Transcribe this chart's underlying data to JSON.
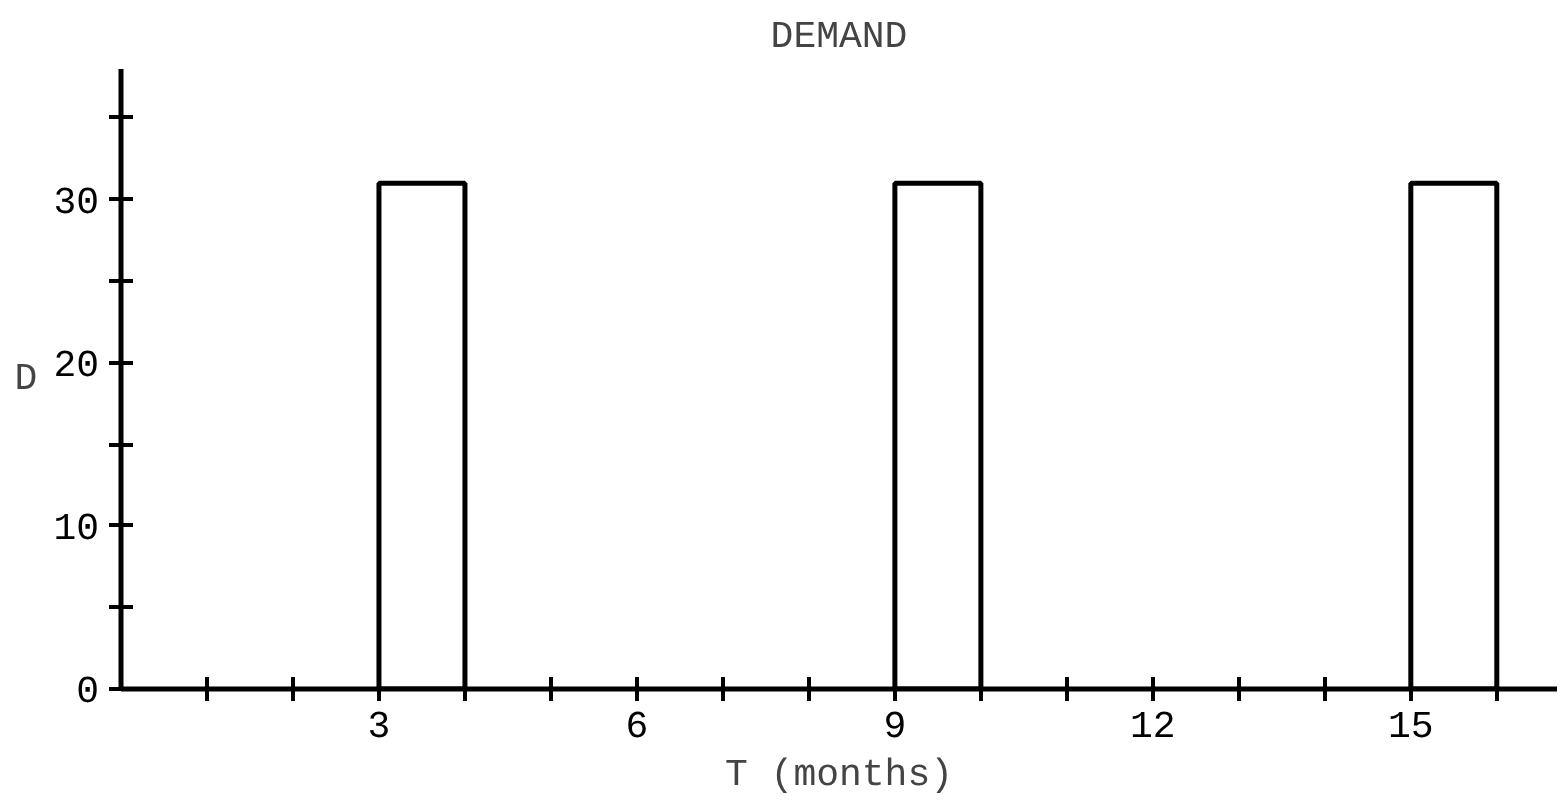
{
  "chart_data": {
    "type": "bar",
    "title": "DEMAND",
    "xlabel": "T (months)",
    "ylabel": "D",
    "x": [
      3.5,
      9.5,
      15.5
    ],
    "values": [
      31,
      31,
      31
    ],
    "color": "#000000",
    "xlim": [
      0,
      16.7
    ],
    "ylim": [
      0,
      38
    ],
    "xticks": [
      {
        "value": 1,
        "label": null
      },
      {
        "value": 2,
        "label": null
      },
      3,
      {
        "value": 4,
        "label": null
      },
      {
        "value": 5,
        "label": null
      },
      6,
      {
        "value": 7,
        "label": null
      },
      {
        "value": 8,
        "label": null
      },
      9,
      {
        "value": 10,
        "label": null
      },
      {
        "value": 11,
        "label": null
      },
      12,
      {
        "value": 13,
        "label": null
      },
      {
        "value": 14,
        "label": null
      },
      15,
      {
        "value": 16,
        "label": null
      }
    ],
    "yticks": [
      0,
      {
        "value": 5,
        "label": null
      },
      10,
      {
        "value": 15,
        "label": null
      },
      20,
      {
        "value": 25,
        "label": null
      },
      30,
      {
        "value": 35,
        "label": null
      }
    ],
    "grid": false
  }
}
